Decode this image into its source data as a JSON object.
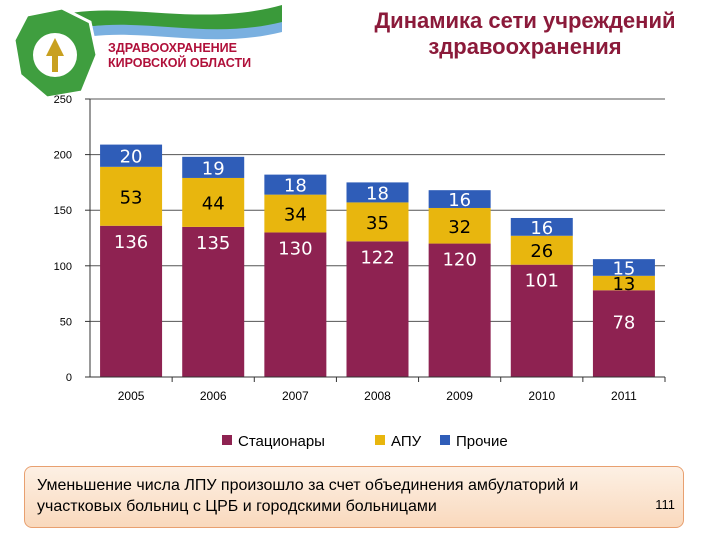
{
  "logo": {
    "line1": "ЗДРАВООХРАНЕНИЕ",
    "line2": "КИРОВСКОЙ ОБЛАСТИ"
  },
  "slide": {
    "title": "Динамика сети учреждений здравоохранения"
  },
  "chart_data": {
    "type": "bar",
    "stacked": true,
    "categories": [
      "2005",
      "2006",
      "2007",
      "2008",
      "2009",
      "2010",
      "2011"
    ],
    "series": [
      {
        "name": "Стационары",
        "color": "#8e2251",
        "values": [
          136,
          135,
          130,
          122,
          120,
          101,
          78
        ]
      },
      {
        "name": "АПУ",
        "color": "#e8b60e",
        "values": [
          53,
          44,
          34,
          35,
          32,
          26,
          13
        ]
      },
      {
        "name": "Прочие",
        "color": "#2f5db8",
        "values": [
          20,
          19,
          18,
          18,
          16,
          16,
          15
        ]
      }
    ],
    "ylim": [
      0,
      250
    ],
    "yticks": [
      0,
      50,
      100,
      150,
      200,
      250
    ],
    "grid": true,
    "legend": "bottom"
  },
  "note": {
    "text": "Уменьшение числа ЛПУ произошло за счет объединения амбулаторий и участковых больниц с ЦРБ и городскими больницами",
    "page_number": "111"
  }
}
